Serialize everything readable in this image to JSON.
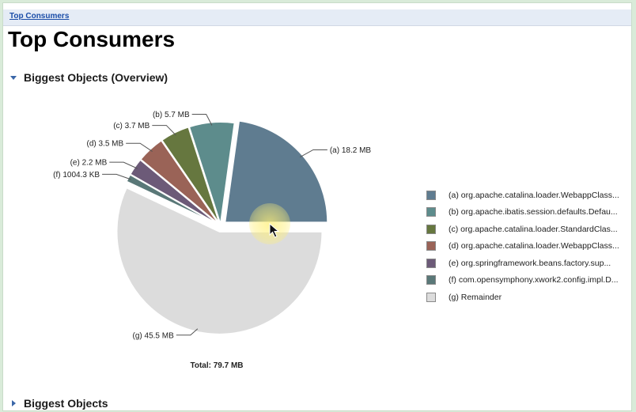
{
  "breadcrumb": {
    "link": "Top Consumers"
  },
  "page": {
    "title": "Top Consumers"
  },
  "sections": {
    "overview": {
      "title": "Biggest Objects (Overview)",
      "expanded": true
    },
    "biggest": {
      "title": "Biggest Objects",
      "expanded": false
    }
  },
  "chart_data": {
    "type": "pie",
    "unit": "MB",
    "total_label": "Total: 79.7 MB",
    "total_value": 79.7,
    "slices": [
      {
        "key": "(a)",
        "value": 18.2,
        "value_label": "18.2 MB",
        "legend": "org.apache.catalina.loader.WebappClass...",
        "color": "#5f7c90",
        "exploded": true
      },
      {
        "key": "(b)",
        "value": 5.7,
        "value_label": "5.7 MB",
        "legend": "org.apache.ibatis.session.defaults.Defau...",
        "color": "#5d8c8c",
        "exploded": false
      },
      {
        "key": "(c)",
        "value": 3.7,
        "value_label": "3.7 MB",
        "legend": "org.apache.catalina.loader.StandardClas...",
        "color": "#66773f",
        "exploded": false
      },
      {
        "key": "(d)",
        "value": 3.5,
        "value_label": "3.5 MB",
        "legend": "org.apache.catalina.loader.WebappClass...",
        "color": "#9a6357",
        "exploded": false
      },
      {
        "key": "(e)",
        "value": 2.2,
        "value_label": "2.2 MB",
        "legend": "org.springframework.beans.factory.sup...",
        "color": "#6c5a78",
        "exploded": false
      },
      {
        "key": "(f)",
        "value": 0.98,
        "value_label": "1004.3 KB",
        "legend": "com.opensymphony.xwork2.config.impl.D...",
        "color": "#5a7878",
        "exploded": false
      },
      {
        "key": "(g)",
        "value": 45.5,
        "value_label": "45.5 MB",
        "legend": "Remainder",
        "color": "#dcdcdc",
        "exploded": true
      }
    ]
  }
}
